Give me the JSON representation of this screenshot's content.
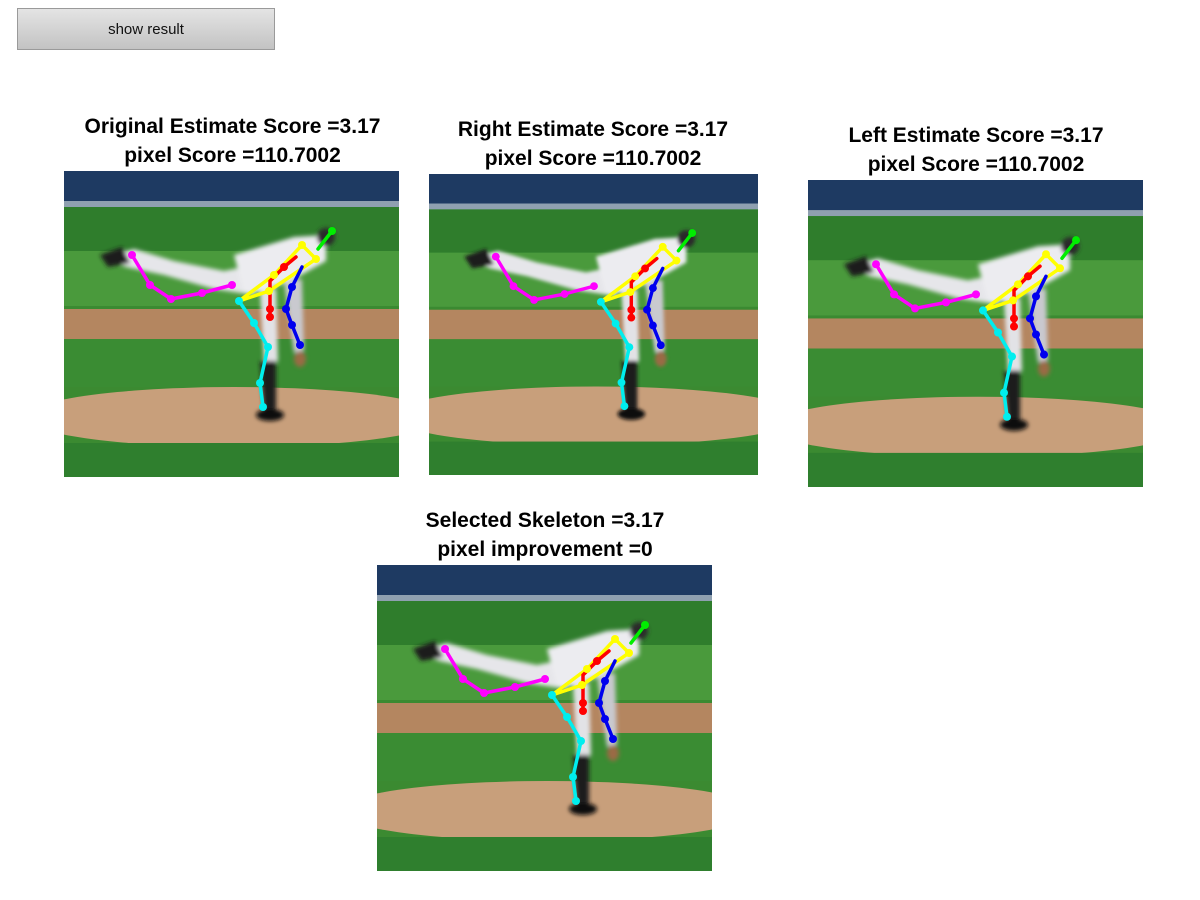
{
  "toolbar": {
    "show_result_label": "show result"
  },
  "panels": [
    {
      "title_line1": "Original Estimate Score =3.17",
      "title_line2": "pixel Score =110.7002"
    },
    {
      "title_line1": "Right Estimate Score =3.17",
      "title_line2": "pixel Score =110.7002"
    },
    {
      "title_line1": "Left Estimate Score =3.17",
      "title_line2": "pixel Score =110.7002"
    },
    {
      "title_line1": "Selected Skeleton =3.17",
      "title_line2": "pixel improvement =0"
    }
  ],
  "skeleton_colors": {
    "head": "#00ee00",
    "torso": "#ffff00",
    "right_arm": "#ff0000",
    "left_arm": "#0000ee",
    "right_leg": "#ff00ff",
    "left_leg": "#00eeee"
  }
}
